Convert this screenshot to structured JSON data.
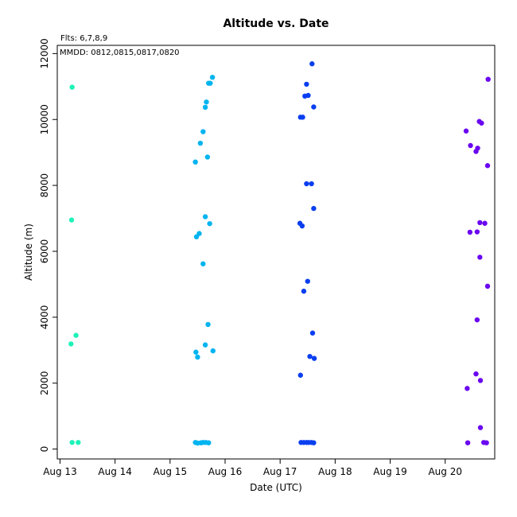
{
  "chart_data": {
    "type": "scatter",
    "title": "Altitude  vs. Date",
    "xlabel": "Date (UTC)",
    "ylabel": "Altitude (m)",
    "annotations": [
      "Flts: 6,7,8,9",
      "MMDD: 0812,0815,0817,0820"
    ],
    "x_ticks": [
      "Aug 13",
      "Aug 14",
      "Aug 15",
      "Aug 16",
      "Aug 17",
      "Aug 18",
      "Aug 19",
      "Aug 20"
    ],
    "y_ticks": [
      0,
      2000,
      4000,
      6000,
      8000,
      10000,
      12000
    ],
    "xlim_days": [
      12.95,
      20.9
    ],
    "ylim": [
      -300,
      12250
    ],
    "grid": false,
    "series": [
      {
        "color": "#1ef2b8",
        "points": [
          [
            13.22,
            200
          ],
          [
            13.33,
            200
          ],
          [
            13.2,
            3190
          ],
          [
            13.29,
            3450
          ],
          [
            13.21,
            6950
          ],
          [
            13.22,
            10980
          ]
        ]
      },
      {
        "color": "#00b4f0",
        "points": [
          [
            15.46,
            200
          ],
          [
            15.5,
            180
          ],
          [
            15.56,
            190
          ],
          [
            15.6,
            200
          ],
          [
            15.65,
            200
          ],
          [
            15.7,
            190
          ],
          [
            15.47,
            2940
          ],
          [
            15.5,
            2790
          ],
          [
            15.64,
            3160
          ],
          [
            15.69,
            3780
          ],
          [
            15.78,
            2980
          ],
          [
            15.6,
            5620
          ],
          [
            15.48,
            6440
          ],
          [
            15.53,
            6540
          ],
          [
            15.64,
            7050
          ],
          [
            15.72,
            6840
          ],
          [
            15.46,
            8710
          ],
          [
            15.55,
            9280
          ],
          [
            15.6,
            9630
          ],
          [
            15.68,
            8860
          ],
          [
            15.64,
            10370
          ],
          [
            15.66,
            10530
          ],
          [
            15.7,
            11100
          ],
          [
            15.73,
            11100
          ],
          [
            15.77,
            11280
          ]
        ]
      },
      {
        "color": "#0a3ff0",
        "points": [
          [
            17.38,
            200
          ],
          [
            17.43,
            200
          ],
          [
            17.48,
            200
          ],
          [
            17.52,
            200
          ],
          [
            17.57,
            200
          ],
          [
            17.61,
            190
          ],
          [
            17.37,
            2240
          ],
          [
            17.54,
            2810
          ],
          [
            17.62,
            2750
          ],
          [
            17.59,
            3520
          ],
          [
            17.43,
            4790
          ],
          [
            17.5,
            5090
          ],
          [
            17.36,
            6850
          ],
          [
            17.4,
            6770
          ],
          [
            17.48,
            8050
          ],
          [
            17.57,
            8050
          ],
          [
            17.61,
            7300
          ],
          [
            17.37,
            10070
          ],
          [
            17.41,
            10070
          ],
          [
            17.45,
            10710
          ],
          [
            17.51,
            10730
          ],
          [
            17.61,
            10380
          ],
          [
            17.48,
            11070
          ],
          [
            17.58,
            11690
          ]
        ]
      },
      {
        "color": "#6a06f0",
        "points": [
          [
            20.41,
            190
          ],
          [
            20.7,
            200
          ],
          [
            20.75,
            190
          ],
          [
            20.4,
            1840
          ],
          [
            20.56,
            2280
          ],
          [
            20.64,
            2080
          ],
          [
            20.64,
            650
          ],
          [
            20.58,
            3920
          ],
          [
            20.45,
            6580
          ],
          [
            20.58,
            6590
          ],
          [
            20.63,
            6870
          ],
          [
            20.72,
            6850
          ],
          [
            20.63,
            5820
          ],
          [
            20.77,
            4940
          ],
          [
            20.38,
            9650
          ],
          [
            20.46,
            9210
          ],
          [
            20.56,
            9030
          ],
          [
            20.59,
            9130
          ],
          [
            20.62,
            9940
          ],
          [
            20.66,
            9890
          ],
          [
            20.77,
            8600
          ],
          [
            20.78,
            11220
          ]
        ]
      }
    ]
  }
}
